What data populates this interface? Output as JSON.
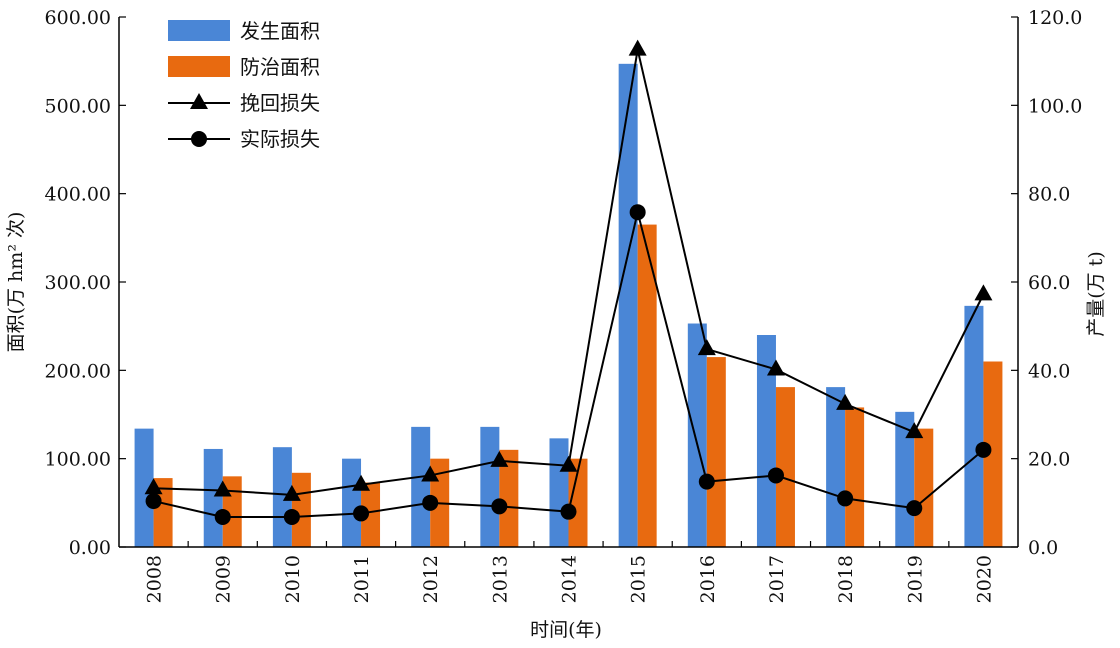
{
  "chart_data": {
    "type": "bar",
    "categories": [
      "2008",
      "2009",
      "2010",
      "2011",
      "2012",
      "2013",
      "2014",
      "2015",
      "2016",
      "2017",
      "2018",
      "2019",
      "2020"
    ],
    "bar_series": [
      {
        "name": "发生面积",
        "color": "#4a86d6",
        "values": [
          134,
          111,
          113,
          100,
          136,
          136,
          123,
          547,
          253,
          240,
          181,
          153,
          273
        ]
      },
      {
        "name": "防治面积",
        "color": "#e86a10",
        "values": [
          78,
          80,
          84,
          73,
          100,
          110,
          100,
          365,
          215,
          181,
          158,
          134,
          210
        ]
      }
    ],
    "line_series": [
      {
        "name": "挽回损失",
        "marker": "triangle",
        "color": "#000000",
        "values": [
          13.3,
          12.8,
          11.8,
          14.1,
          16.2,
          19.5,
          18.4,
          112.6,
          44.8,
          40.2,
          32.4,
          26.0,
          57.2
        ]
      },
      {
        "name": "实际损失",
        "marker": "circle",
        "color": "#000000",
        "values": [
          10.4,
          6.8,
          6.8,
          7.6,
          10.0,
          9.2,
          8.0,
          75.8,
          14.8,
          16.2,
          11.0,
          8.8,
          22.0
        ]
      }
    ],
    "xlabel": "时间(年)",
    "ylabel_left": "面积(万 hm² 次)",
    "ylabel_right": "产量(万 t)",
    "y_left": {
      "min": 0,
      "max": 600,
      "ticks": [
        "0.00",
        "100.00",
        "200.00",
        "300.00",
        "400.00",
        "500.00",
        "600.00"
      ]
    },
    "y_right": {
      "min": 0,
      "max": 120,
      "ticks": [
        "0.0",
        "20.0",
        "40.0",
        "60.0",
        "80.0",
        "100.0",
        "120.0"
      ]
    },
    "legend_position": "top-left",
    "grid": false
  }
}
